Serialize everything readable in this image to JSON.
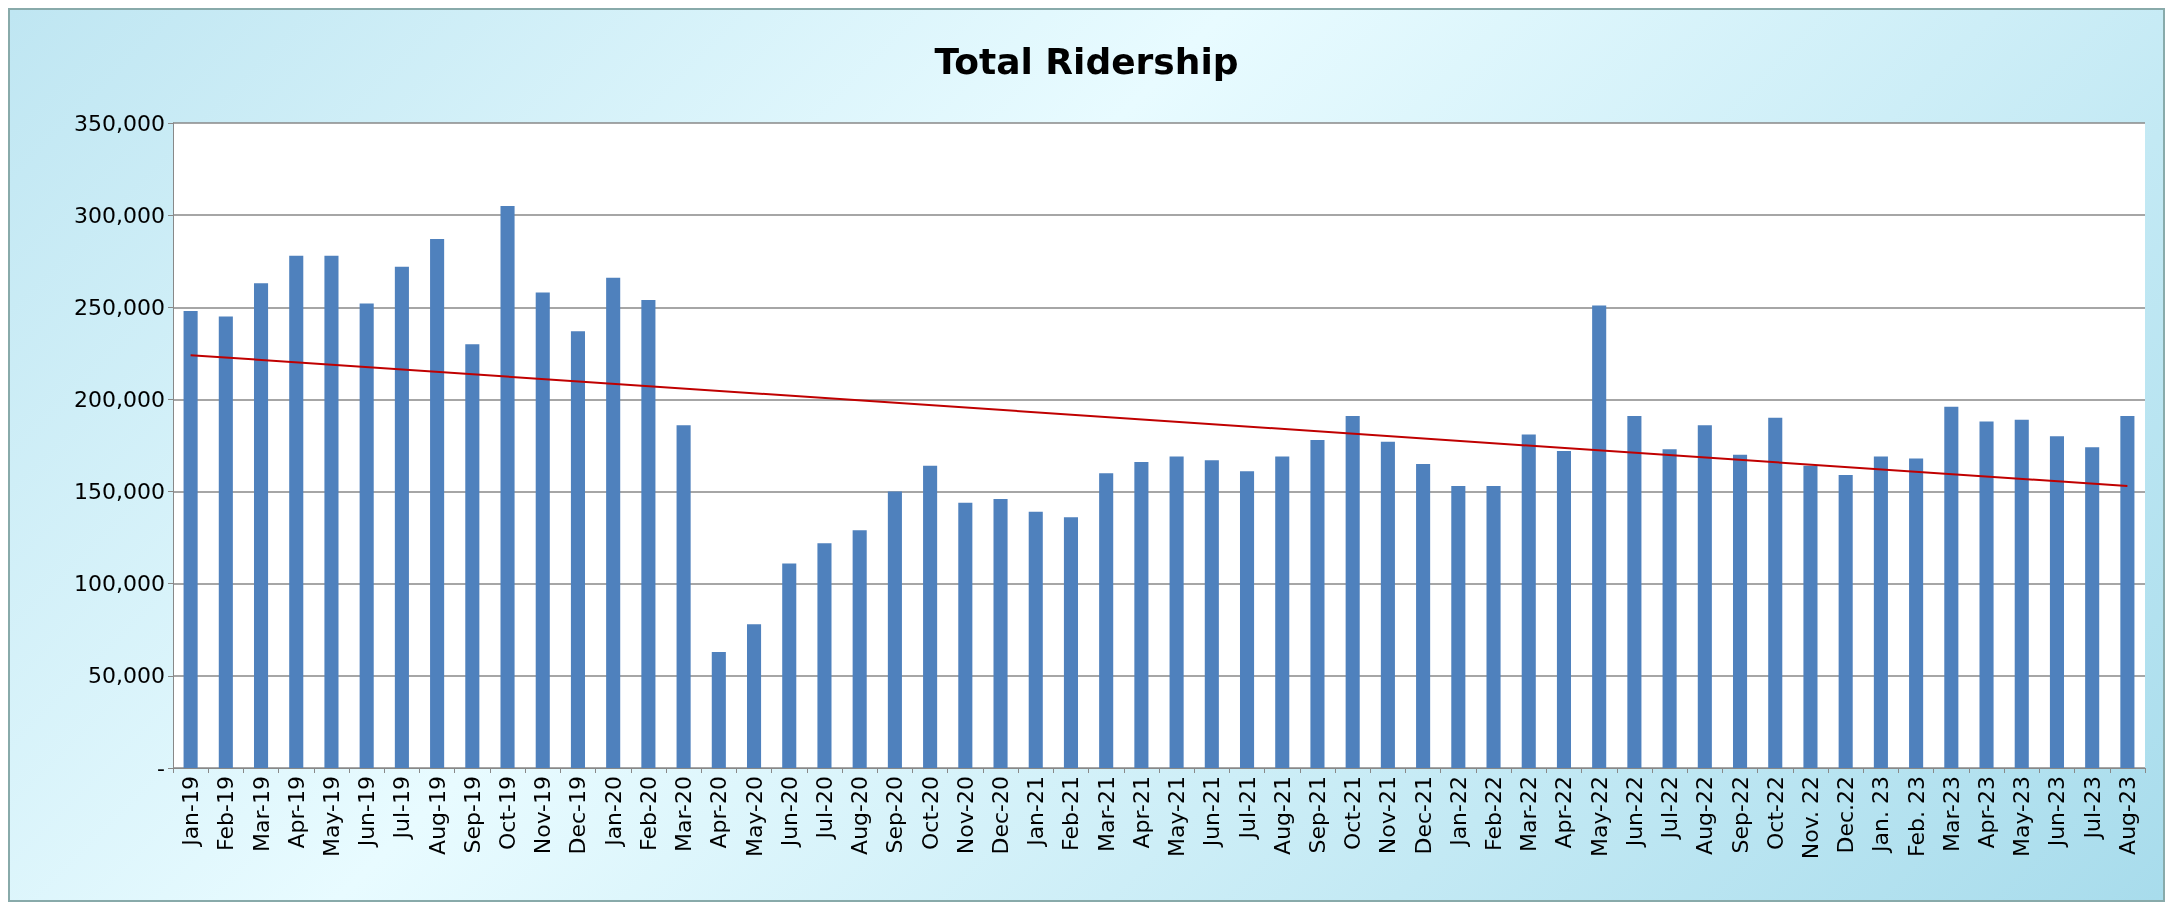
{
  "chart_data": {
    "type": "bar",
    "title": "Total Ridership",
    "categories": [
      "Jan-19",
      "Feb-19",
      "Mar-19",
      "Apr-19",
      "May-19",
      "Jun-19",
      "Jul-19",
      "Aug-19",
      "Sep-19",
      "Oct-19",
      "Nov-19",
      "Dec-19",
      "Jan-20",
      "Feb-20",
      "Mar-20",
      "Apr-20",
      "May-20",
      "Jun-20",
      "Jul-20",
      "Aug-20",
      "Sep-20",
      "Oct-20",
      "Nov-20",
      "Dec-20",
      "Jan-21",
      "Feb-21",
      "Mar-21",
      "Apr-21",
      "May-21",
      "Jun-21",
      "Jul-21",
      "Aug-21",
      "Sep-21",
      "Oct-21",
      "Nov-21",
      "Dec-21",
      "Jan-22",
      "Feb-22",
      "Mar-22",
      "Apr-22",
      "May-22",
      "Jun-22",
      "Jul-22",
      "Aug-22",
      "Sep-22",
      "Oct-22",
      "Nov. 22",
      "Dec.22",
      "Jan. 23",
      "Feb. 23",
      "Mar-23",
      "Apr-23",
      "May-23",
      "Jun-23",
      "Jul-23",
      "Aug-23"
    ],
    "series": [
      {
        "color": "#4f81bd",
        "values": [
          248000,
          245000,
          263000,
          278000,
          278000,
          252000,
          272000,
          287000,
          230000,
          305000,
          258000,
          237000,
          266000,
          254000,
          186000,
          63000,
          78000,
          111000,
          122000,
          129000,
          150000,
          164000,
          144000,
          146000,
          139000,
          136000,
          160000,
          166000,
          169000,
          167000,
          161000,
          169000,
          178000,
          191000,
          177000,
          165000,
          153000,
          153000,
          181000,
          172000,
          251000,
          191000,
          173000,
          186000,
          170000,
          190000,
          164000,
          159000,
          169000,
          168000,
          196000,
          188000,
          189000,
          180000,
          174000,
          191000
        ]
      },
      {
        "type": "line",
        "color": "#c00000",
        "x": [
          "Jan-19",
          "Aug-23"
        ],
        "values": [
          224000,
          153000
        ]
      }
    ],
    "ylim": [
      0,
      350000
    ],
    "yticks": [
      {
        "value": 0,
        "label": "-"
      },
      {
        "value": 50000,
        "label": "50,000"
      },
      {
        "value": 100000,
        "label": "100,000"
      },
      {
        "value": 150000,
        "label": "150,000"
      },
      {
        "value": 200000,
        "label": "200,000"
      },
      {
        "value": 250000,
        "label": "250,000"
      },
      {
        "value": 300000,
        "label": "300,000"
      },
      {
        "value": 350000,
        "label": "350,000"
      }
    ],
    "grid": "y",
    "marker": "none",
    "line_style": "solid"
  }
}
